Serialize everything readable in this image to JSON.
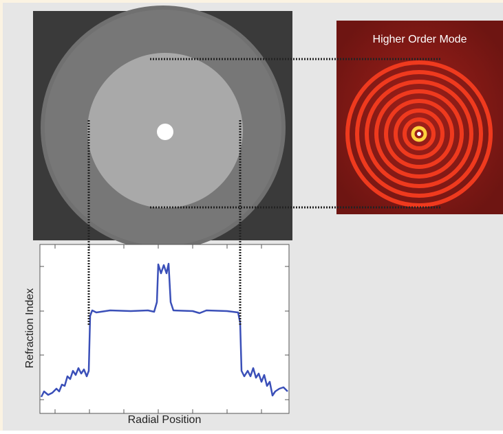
{
  "mode_panel": {
    "title": "Higher Order Mode"
  },
  "plot": {
    "y_label": "Refraction Index",
    "x_label": "Radial Position"
  }
}
